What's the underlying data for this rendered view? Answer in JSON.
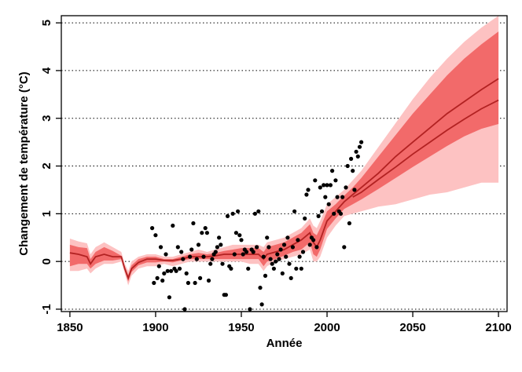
{
  "chart_data": {
    "type": "line",
    "title": "",
    "xlabel": "Année",
    "ylabel": "Changement de température (°C)",
    "xlim": [
      1845,
      2105
    ],
    "ylim": [
      -1.05,
      5.15
    ],
    "x_ticks": [
      1850,
      1900,
      1950,
      2000,
      2050,
      2100
    ],
    "y_ticks": [
      -1,
      0,
      1,
      2,
      3,
      4,
      5
    ],
    "grid": "horizontal dotted",
    "legend": "none",
    "colors": {
      "outer_band": "#fdc2c2",
      "inner_band": "#f26a6a",
      "median_line": "#b22222",
      "points": "#000000"
    },
    "series": [
      {
        "kind": "band",
        "x": [
          1850,
          1855,
          1860,
          1862,
          1865,
          1870,
          1875,
          1880,
          1882,
          1884,
          1886,
          1890,
          1895,
          1900,
          1905,
          1910,
          1915,
          1920,
          1925,
          1930,
          1935,
          1940,
          1945,
          1950,
          1955,
          1960,
          1963,
          1965,
          1970,
          1975,
          1980,
          1985,
          1990,
          1992,
          1994,
          1996,
          2000,
          2005,
          2010,
          2015,
          2020,
          2030,
          2040,
          2050,
          2060,
          2070,
          2080,
          2090,
          2100
        ],
        "lower": [
          -0.2,
          -0.2,
          -0.15,
          -0.25,
          -0.15,
          -0.05,
          -0.05,
          0.0,
          -0.25,
          -0.5,
          -0.3,
          -0.15,
          -0.1,
          -0.1,
          -0.05,
          -0.1,
          -0.05,
          0.0,
          0.0,
          0.0,
          0.0,
          0.0,
          0.0,
          0.0,
          -0.05,
          -0.05,
          -0.2,
          -0.1,
          0.0,
          0.05,
          0.1,
          0.15,
          0.25,
          0.0,
          0.0,
          0.1,
          0.5,
          0.75,
          0.95,
          1.0,
          1.05,
          1.15,
          1.2,
          1.3,
          1.4,
          1.45,
          1.55,
          1.65,
          1.65
        ],
        "upper": [
          0.48,
          0.42,
          0.38,
          0.15,
          0.3,
          0.4,
          0.3,
          0.2,
          -0.05,
          -0.2,
          0.0,
          0.1,
          0.15,
          0.15,
          0.1,
          0.1,
          0.15,
          0.2,
          0.25,
          0.2,
          0.25,
          0.3,
          0.35,
          0.35,
          0.35,
          0.35,
          0.3,
          0.4,
          0.45,
          0.5,
          0.6,
          0.7,
          0.9,
          0.75,
          0.7,
          0.85,
          1.2,
          1.35,
          1.5,
          1.7,
          1.9,
          2.4,
          2.9,
          3.4,
          3.85,
          4.25,
          4.6,
          4.9,
          5.15
        ]
      },
      {
        "kind": "band",
        "x": [
          1850,
          1855,
          1860,
          1862,
          1865,
          1870,
          1875,
          1880,
          1882,
          1884,
          1886,
          1890,
          1895,
          1900,
          1905,
          1910,
          1915,
          1920,
          1925,
          1930,
          1935,
          1940,
          1945,
          1950,
          1955,
          1960,
          1963,
          1965,
          1970,
          1975,
          1980,
          1985,
          1990,
          1992,
          1994,
          1996,
          2000,
          2005,
          2010,
          2015,
          2020,
          2030,
          2040,
          2050,
          2060,
          2070,
          2080,
          2090,
          2100
        ],
        "lower": [
          -0.1,
          -0.05,
          -0.05,
          -0.15,
          -0.05,
          0.02,
          0.02,
          0.05,
          -0.2,
          -0.42,
          -0.22,
          -0.08,
          -0.02,
          -0.02,
          0.0,
          -0.02,
          0.02,
          0.05,
          0.05,
          0.05,
          0.05,
          0.05,
          0.05,
          0.05,
          0.05,
          0.05,
          -0.1,
          0.0,
          0.05,
          0.12,
          0.2,
          0.25,
          0.4,
          0.15,
          0.1,
          0.25,
          0.68,
          0.9,
          1.1,
          1.2,
          1.3,
          1.52,
          1.75,
          1.98,
          2.2,
          2.42,
          2.62,
          2.78,
          2.88
        ],
        "upper": [
          0.35,
          0.3,
          0.28,
          0.05,
          0.2,
          0.3,
          0.22,
          0.12,
          -0.1,
          -0.28,
          -0.08,
          0.05,
          0.1,
          0.1,
          0.05,
          0.05,
          0.1,
          0.15,
          0.18,
          0.15,
          0.18,
          0.22,
          0.25,
          0.28,
          0.28,
          0.28,
          0.2,
          0.3,
          0.35,
          0.4,
          0.5,
          0.6,
          0.78,
          0.6,
          0.55,
          0.7,
          1.05,
          1.2,
          1.38,
          1.55,
          1.75,
          2.2,
          2.65,
          3.1,
          3.5,
          3.9,
          4.25,
          4.55,
          4.82
        ]
      },
      {
        "kind": "line",
        "x": [
          1850,
          1855,
          1860,
          1862,
          1865,
          1870,
          1875,
          1880,
          1882,
          1884,
          1886,
          1890,
          1895,
          1900,
          1905,
          1910,
          1915,
          1920,
          1925,
          1930,
          1935,
          1940,
          1945,
          1950,
          1955,
          1960,
          1963,
          1965,
          1970,
          1975,
          1980,
          1985,
          1990,
          1992,
          1994,
          1996,
          2000,
          2005,
          2010,
          2015,
          2020,
          2030,
          2040,
          2050,
          2060,
          2070,
          2080,
          2090,
          2100
        ],
        "y": [
          0.18,
          0.15,
          0.1,
          -0.05,
          0.1,
          0.15,
          0.1,
          0.1,
          -0.15,
          -0.35,
          -0.15,
          -0.02,
          0.05,
          0.05,
          0.02,
          0.02,
          0.05,
          0.1,
          0.1,
          0.1,
          0.12,
          0.15,
          0.15,
          0.15,
          0.15,
          0.15,
          0.05,
          0.15,
          0.2,
          0.25,
          0.35,
          0.45,
          0.6,
          0.4,
          0.3,
          0.45,
          0.85,
          1.05,
          1.25,
          1.4,
          1.55,
          1.85,
          2.2,
          2.5,
          2.8,
          3.1,
          3.35,
          3.6,
          3.83
        ]
      },
      {
        "kind": "line",
        "x": [
          2015,
          2020,
          2030,
          2040,
          2050,
          2060,
          2070,
          2080,
          2090,
          2100
        ],
        "y": [
          1.35,
          1.45,
          1.72,
          1.98,
          2.25,
          2.5,
          2.75,
          2.98,
          3.2,
          3.38
        ]
      },
      {
        "kind": "scatter",
        "points": [
          [
            1898,
            0.7
          ],
          [
            1899,
            -0.45
          ],
          [
            1900,
            0.55
          ],
          [
            1901,
            -0.35
          ],
          [
            1902,
            -0.1
          ],
          [
            1903,
            0.3
          ],
          [
            1904,
            -0.4
          ],
          [
            1905,
            -0.25
          ],
          [
            1906,
            0.15
          ],
          [
            1907,
            -0.2
          ],
          [
            1908,
            -0.75
          ],
          [
            1909,
            -0.2
          ],
          [
            1910,
            0.75
          ],
          [
            1911,
            -0.15
          ],
          [
            1912,
            -0.2
          ],
          [
            1913,
            0.3
          ],
          [
            1914,
            -0.15
          ],
          [
            1915,
            0.2
          ],
          [
            1916,
            0.05
          ],
          [
            1917,
            -1.0
          ],
          [
            1918,
            -0.25
          ],
          [
            1919,
            -0.45
          ],
          [
            1920,
            0.1
          ],
          [
            1921,
            0.25
          ],
          [
            1922,
            0.8
          ],
          [
            1923,
            -0.45
          ],
          [
            1924,
            0.05
          ],
          [
            1925,
            0.35
          ],
          [
            1926,
            -0.35
          ],
          [
            1927,
            0.6
          ],
          [
            1928,
            0.1
          ],
          [
            1929,
            0.7
          ],
          [
            1930,
            0.6
          ],
          [
            1931,
            -0.4
          ],
          [
            1932,
            -0.05
          ],
          [
            1933,
            0.05
          ],
          [
            1934,
            0.15
          ],
          [
            1935,
            0.2
          ],
          [
            1936,
            0.3
          ],
          [
            1937,
            0.5
          ],
          [
            1938,
            0.35
          ],
          [
            1939,
            -0.05
          ],
          [
            1940,
            -0.7
          ],
          [
            1941,
            -0.7
          ],
          [
            1942,
            0.95
          ],
          [
            1943,
            -0.1
          ],
          [
            1944,
            -0.15
          ],
          [
            1945,
            1.0
          ],
          [
            1946,
            0.15
          ],
          [
            1947,
            0.6
          ],
          [
            1948,
            1.05
          ],
          [
            1949,
            0.55
          ],
          [
            1950,
            0.45
          ],
          [
            1951,
            0.15
          ],
          [
            1952,
            0.25
          ],
          [
            1953,
            0.2
          ],
          [
            1954,
            -0.15
          ],
          [
            1955,
            -1.0
          ],
          [
            1956,
            0.25
          ],
          [
            1957,
            0.2
          ],
          [
            1958,
            1.0
          ],
          [
            1959,
            0.3
          ],
          [
            1960,
            1.05
          ],
          [
            1961,
            -0.55
          ],
          [
            1962,
            -0.9
          ],
          [
            1963,
            0.1
          ],
          [
            1964,
            -0.3
          ],
          [
            1965,
            0.5
          ],
          [
            1966,
            0.3
          ],
          [
            1967,
            0.05
          ],
          [
            1968,
            -0.05
          ],
          [
            1969,
            -0.15
          ],
          [
            1970,
            0.0
          ],
          [
            1971,
            0.15
          ],
          [
            1972,
            0.05
          ],
          [
            1973,
            0.25
          ],
          [
            1974,
            -0.25
          ],
          [
            1975,
            0.35
          ],
          [
            1976,
            0.1
          ],
          [
            1977,
            0.5
          ],
          [
            1978,
            -0.05
          ],
          [
            1979,
            -0.35
          ],
          [
            1980,
            0.3
          ],
          [
            1981,
            1.05
          ],
          [
            1982,
            -0.15
          ],
          [
            1983,
            0.45
          ],
          [
            1984,
            0.1
          ],
          [
            1985,
            -0.15
          ],
          [
            1986,
            0.2
          ],
          [
            1987,
            0.9
          ],
          [
            1988,
            1.4
          ],
          [
            1989,
            1.5
          ],
          [
            1990,
            0.35
          ],
          [
            1991,
            0.5
          ],
          [
            1992,
            0.45
          ],
          [
            1993,
            1.7
          ],
          [
            1994,
            0.3
          ],
          [
            1995,
            0.95
          ],
          [
            1996,
            1.55
          ],
          [
            1997,
            1.05
          ],
          [
            1998,
            1.6
          ],
          [
            1999,
            1.35
          ],
          [
            2000,
            1.6
          ],
          [
            2001,
            1.2
          ],
          [
            2002,
            1.6
          ],
          [
            2003,
            1.9
          ],
          [
            2004,
            1.0
          ],
          [
            2005,
            1.7
          ],
          [
            2006,
            1.35
          ],
          [
            2007,
            1.05
          ],
          [
            2008,
            1.0
          ],
          [
            2009,
            1.35
          ],
          [
            2010,
            0.3
          ],
          [
            2011,
            1.55
          ],
          [
            2012,
            2.0
          ],
          [
            2013,
            0.8
          ],
          [
            2014,
            2.15
          ],
          [
            2015,
            1.9
          ],
          [
            2016,
            1.5
          ],
          [
            2017,
            2.3
          ],
          [
            2018,
            2.2
          ],
          [
            2019,
            2.4
          ],
          [
            2020,
            2.5
          ]
        ]
      }
    ]
  }
}
